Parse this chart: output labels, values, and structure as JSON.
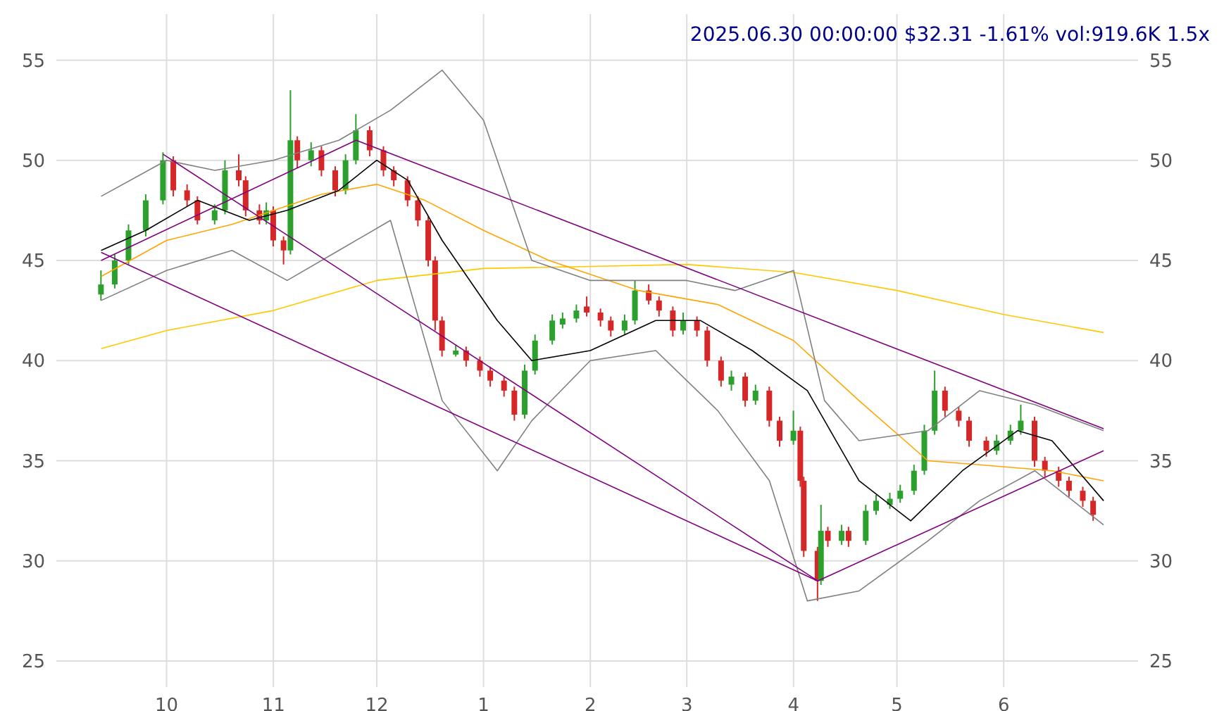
{
  "chart_data": {
    "type": "candlestick",
    "title": "2025.06.30 00:00:00 $32.31 -1.61% vol:919.6K 1.5x",
    "x": [
      "2024-09-12",
      "2024-09-16",
      "2024-09-20",
      "2024-09-25",
      "2024-09-30",
      "2024-10-03",
      "2024-10-07",
      "2024-10-10",
      "2024-10-15",
      "2024-10-18",
      "2024-10-22",
      "2024-10-24",
      "2024-10-28",
      "2024-10-30",
      "2024-11-01",
      "2024-11-04",
      "2024-11-06",
      "2024-11-08",
      "2024-11-12",
      "2024-11-15",
      "2024-11-19",
      "2024-11-22",
      "2024-11-25",
      "2024-11-29",
      "2024-12-03",
      "2024-12-06",
      "2024-12-10",
      "2024-12-13",
      "2024-12-16",
      "2024-12-18",
      "2024-12-20",
      "2024-12-24",
      "2024-12-27",
      "2024-12-31",
      "2025-01-03",
      "2025-01-07",
      "2025-01-10",
      "2025-01-13",
      "2025-01-16",
      "2025-01-21",
      "2025-01-24",
      "2025-01-28",
      "2025-01-31",
      "2025-02-04",
      "2025-02-07",
      "2025-02-11",
      "2025-02-14",
      "2025-02-18",
      "2025-02-21",
      "2025-02-25",
      "2025-02-28",
      "2025-03-04",
      "2025-03-07",
      "2025-03-11",
      "2025-03-14",
      "2025-03-18",
      "2025-03-21",
      "2025-03-25",
      "2025-03-28",
      "2025-04-01",
      "2025-04-03",
      "2025-04-04",
      "2025-04-08",
      "2025-04-09",
      "2025-04-11",
      "2025-04-15",
      "2025-04-17",
      "2025-04-22",
      "2025-04-25",
      "2025-04-29",
      "2025-05-02",
      "2025-05-06",
      "2025-05-09",
      "2025-05-12",
      "2025-05-15",
      "2025-05-19",
      "2025-05-22",
      "2025-05-27",
      "2025-05-30",
      "2025-06-03",
      "2025-06-06",
      "2025-06-10",
      "2025-06-13",
      "2025-06-17",
      "2025-06-20",
      "2025-06-24",
      "2025-06-27"
    ],
    "ohlc": [
      [
        43.3,
        44.5,
        43.0,
        43.8
      ],
      [
        43.8,
        45.3,
        43.6,
        45.0
      ],
      [
        45.0,
        46.8,
        44.8,
        46.5
      ],
      [
        46.5,
        48.3,
        46.2,
        48.0
      ],
      [
        48.0,
        50.4,
        47.8,
        50.0
      ],
      [
        50.0,
        50.2,
        48.2,
        48.5
      ],
      [
        48.5,
        48.8,
        47.7,
        48.0
      ],
      [
        48.0,
        48.2,
        46.8,
        47.0
      ],
      [
        47.0,
        47.8,
        46.8,
        47.5
      ],
      [
        47.5,
        50.0,
        47.3,
        49.5
      ],
      [
        49.5,
        50.3,
        48.7,
        49.0
      ],
      [
        49.0,
        49.2,
        47.2,
        47.5
      ],
      [
        47.5,
        47.8,
        46.8,
        47.0
      ],
      [
        47.0,
        47.9,
        46.8,
        47.5
      ],
      [
        47.5,
        47.7,
        45.7,
        46.0
      ],
      [
        46.0,
        46.2,
        44.8,
        45.5
      ],
      [
        45.5,
        53.5,
        45.3,
        51.0
      ],
      [
        51.0,
        51.2,
        49.6,
        50.0
      ],
      [
        50.0,
        50.9,
        49.7,
        50.5
      ],
      [
        50.5,
        50.7,
        49.2,
        49.5
      ],
      [
        49.5,
        49.7,
        48.2,
        48.5
      ],
      [
        48.5,
        50.3,
        48.3,
        50.0
      ],
      [
        50.0,
        52.3,
        49.8,
        51.5
      ],
      [
        51.5,
        51.7,
        50.2,
        50.5
      ],
      [
        50.5,
        50.7,
        49.2,
        49.5
      ],
      [
        49.5,
        49.7,
        48.7,
        49.0
      ],
      [
        49.0,
        49.2,
        47.7,
        48.0
      ],
      [
        48.0,
        48.2,
        46.7,
        47.0
      ],
      [
        47.0,
        47.2,
        44.7,
        45.0
      ],
      [
        45.0,
        45.2,
        41.5,
        42.0
      ],
      [
        42.0,
        42.2,
        40.2,
        40.5
      ],
      [
        40.3,
        40.8,
        40.2,
        40.5
      ],
      [
        40.5,
        40.7,
        39.7,
        40.0
      ],
      [
        40.0,
        40.2,
        39.2,
        39.5
      ],
      [
        39.5,
        39.7,
        38.7,
        39.0
      ],
      [
        39.0,
        39.2,
        38.2,
        38.5
      ],
      [
        38.5,
        38.7,
        37.0,
        37.3
      ],
      [
        37.3,
        39.8,
        37.1,
        39.5
      ],
      [
        39.5,
        41.3,
        39.3,
        41.0
      ],
      [
        41.0,
        42.3,
        40.8,
        42.0
      ],
      [
        41.8,
        42.4,
        41.6,
        42.1
      ],
      [
        42.1,
        42.8,
        41.9,
        42.5
      ],
      [
        42.7,
        43.2,
        42.2,
        42.4
      ],
      [
        42.4,
        42.6,
        41.7,
        42.0
      ],
      [
        42.0,
        42.2,
        41.2,
        41.5
      ],
      [
        41.5,
        42.3,
        41.3,
        42.0
      ],
      [
        42.0,
        44.0,
        41.8,
        43.5
      ],
      [
        43.5,
        43.8,
        42.8,
        43.0
      ],
      [
        43.0,
        43.2,
        42.2,
        42.5
      ],
      [
        42.5,
        42.7,
        41.2,
        41.5
      ],
      [
        41.5,
        42.4,
        41.3,
        42.0
      ],
      [
        42.0,
        42.2,
        41.2,
        41.5
      ],
      [
        41.5,
        41.7,
        39.7,
        40.0
      ],
      [
        40.0,
        40.2,
        38.7,
        39.0
      ],
      [
        38.8,
        39.5,
        38.5,
        39.2
      ],
      [
        39.2,
        39.4,
        37.7,
        38.0
      ],
      [
        38.0,
        38.8,
        37.8,
        38.5
      ],
      [
        38.5,
        38.7,
        36.7,
        37.0
      ],
      [
        37.0,
        37.2,
        35.7,
        36.0
      ],
      [
        36.0,
        37.5,
        35.8,
        36.5
      ],
      [
        36.5,
        36.7,
        33.7,
        34.0
      ],
      [
        34.0,
        34.2,
        30.2,
        30.5
      ],
      [
        30.5,
        30.7,
        28.0,
        29.0
      ],
      [
        29.0,
        32.8,
        28.8,
        31.5
      ],
      [
        31.5,
        31.7,
        30.7,
        31.0
      ],
      [
        31.0,
        31.8,
        30.8,
        31.5
      ],
      [
        31.5,
        31.7,
        30.7,
        31.0
      ],
      [
        31.0,
        32.8,
        30.8,
        32.5
      ],
      [
        32.5,
        33.3,
        32.3,
        33.0
      ],
      [
        32.8,
        33.4,
        32.6,
        33.1
      ],
      [
        33.1,
        33.8,
        32.9,
        33.5
      ],
      [
        33.5,
        34.8,
        33.3,
        34.5
      ],
      [
        34.5,
        36.8,
        34.3,
        36.5
      ],
      [
        36.5,
        39.5,
        36.3,
        38.5
      ],
      [
        38.5,
        38.7,
        37.2,
        37.5
      ],
      [
        37.5,
        37.7,
        36.7,
        37.0
      ],
      [
        37.0,
        37.2,
        35.7,
        36.0
      ],
      [
        36.0,
        36.2,
        35.2,
        35.5
      ],
      [
        35.5,
        36.3,
        35.3,
        36.0
      ],
      [
        36.0,
        36.8,
        35.8,
        36.5
      ],
      [
        36.5,
        37.8,
        36.3,
        37.0
      ],
      [
        37.0,
        37.2,
        34.7,
        35.0
      ],
      [
        35.0,
        35.2,
        34.2,
        34.5
      ],
      [
        34.5,
        34.7,
        33.7,
        34.0
      ],
      [
        34.0,
        34.2,
        33.2,
        33.5
      ],
      [
        33.5,
        33.7,
        32.7,
        33.0
      ],
      [
        33.0,
        33.2,
        32.0,
        32.3
      ]
    ],
    "series": [
      {
        "type": "line",
        "color": "#ffc800",
        "x": [
          "2024-09-12",
          "2024-10-01",
          "2024-11-01",
          "2024-12-01",
          "2025-01-01",
          "2025-02-01",
          "2025-03-01",
          "2025-04-01",
          "2025-05-01",
          "2025-06-01",
          "2025-06-30"
        ],
        "values": [
          40.6,
          41.5,
          42.5,
          44.0,
          44.6,
          44.7,
          44.8,
          44.4,
          43.5,
          42.3,
          41.4
        ]
      },
      {
        "type": "line",
        "color": "#ffa500",
        "x": [
          "2024-09-12",
          "2024-10-01",
          "2024-10-20",
          "2024-11-15",
          "2024-12-01",
          "2024-12-15",
          "2025-01-01",
          "2025-01-20",
          "2025-02-15",
          "2025-03-10",
          "2025-04-01",
          "2025-04-20",
          "2025-05-10",
          "2025-05-25",
          "2025-06-15",
          "2025-06-30"
        ],
        "values": [
          44.2,
          46.0,
          46.8,
          48.3,
          48.8,
          48.0,
          46.5,
          45.0,
          43.5,
          42.8,
          41.0,
          38.0,
          35.0,
          34.8,
          34.5,
          34.0
        ]
      },
      {
        "type": "line",
        "color": "#000000",
        "x": [
          "2024-09-12",
          "2024-09-25",
          "2024-10-10",
          "2024-10-25",
          "2024-11-05",
          "2024-11-20",
          "2024-12-01",
          "2024-12-10",
          "2024-12-20",
          "2025-01-05",
          "2025-01-15",
          "2025-02-01",
          "2025-02-20",
          "2025-03-05",
          "2025-03-20",
          "2025-04-05",
          "2025-04-20",
          "2025-05-05",
          "2025-05-20",
          "2025-06-05",
          "2025-06-15",
          "2025-06-30"
        ],
        "values": [
          45.5,
          46.5,
          48.0,
          47.0,
          47.5,
          48.5,
          50.0,
          49.0,
          46.0,
          42.0,
          40.0,
          40.5,
          42.0,
          42.0,
          40.5,
          38.5,
          34.0,
          32.0,
          34.5,
          36.5,
          36.0,
          33.0
        ]
      },
      {
        "type": "line",
        "color": "#808080",
        "x": [
          "2024-09-12",
          "2024-10-01",
          "2024-10-15",
          "2024-11-01",
          "2024-11-20",
          "2024-12-05",
          "2024-12-20",
          "2025-01-01",
          "2025-01-15",
          "2025-02-01",
          "2025-02-15",
          "2025-03-01",
          "2025-03-15",
          "2025-04-01",
          "2025-04-10",
          "2025-04-20",
          "2025-05-10",
          "2025-05-25",
          "2025-06-10",
          "2025-06-30"
        ],
        "values": [
          48.2,
          50.0,
          49.5,
          50.0,
          51.0,
          52.5,
          54.5,
          52.0,
          45.0,
          44.0,
          44.0,
          44.0,
          43.5,
          44.5,
          38.0,
          36.0,
          36.5,
          38.5,
          37.8,
          36.5
        ]
      },
      {
        "type": "line",
        "color": "#808080",
        "x": [
          "2024-09-12",
          "2024-10-01",
          "2024-10-20",
          "2024-11-05",
          "2024-11-20",
          "2024-12-05",
          "2024-12-20",
          "2025-01-05",
          "2025-01-15",
          "2025-02-01",
          "2025-02-20",
          "2025-03-10",
          "2025-03-25",
          "2025-04-05",
          "2025-04-20",
          "2025-05-10",
          "2025-05-25",
          "2025-06-10",
          "2025-06-30"
        ],
        "values": [
          43.0,
          44.5,
          45.5,
          44.0,
          45.5,
          47.0,
          38.0,
          34.5,
          37.0,
          40.0,
          40.5,
          37.5,
          34.0,
          28.0,
          28.5,
          31.0,
          33.0,
          34.5,
          31.8
        ]
      },
      {
        "type": "line",
        "color": "#800080",
        "x": [
          "2024-09-12",
          "2024-11-25",
          "2025-06-30"
        ],
        "values": [
          45.0,
          51.0,
          36.6
        ]
      },
      {
        "type": "line",
        "color": "#800080",
        "x": [
          "2024-09-30",
          "2025-04-08",
          "2025-06-30"
        ],
        "values": [
          50.3,
          29.0,
          35.5
        ]
      },
      {
        "type": "line",
        "color": "#800080",
        "x": [
          "2024-09-12",
          "2025-04-08"
        ],
        "values": [
          45.4,
          29.0
        ]
      }
    ],
    "xlim": [
      "2024-08-30",
      "2025-07-10"
    ],
    "xticks": [
      {
        "value": "2024-10-01",
        "label": "10"
      },
      {
        "value": "2024-11-01",
        "label": "11"
      },
      {
        "value": "2024-12-01",
        "label": "12"
      },
      {
        "value": "2025-01-01",
        "label": "1"
      },
      {
        "value": "2025-02-01",
        "label": "2"
      },
      {
        "value": "2025-03-01",
        "label": "3"
      },
      {
        "value": "2025-04-01",
        "label": "4"
      },
      {
        "value": "2025-05-01",
        "label": "5"
      },
      {
        "value": "2025-06-01",
        "label": "6"
      }
    ],
    "ylim": [
      23.7,
      57.3
    ],
    "yticks": [
      25,
      30,
      35,
      40,
      45,
      50,
      55
    ],
    "y2lim": [
      23.7,
      57.3
    ],
    "y2ticks": [
      25,
      30,
      35,
      40,
      45,
      50,
      55
    ],
    "grid": true
  }
}
